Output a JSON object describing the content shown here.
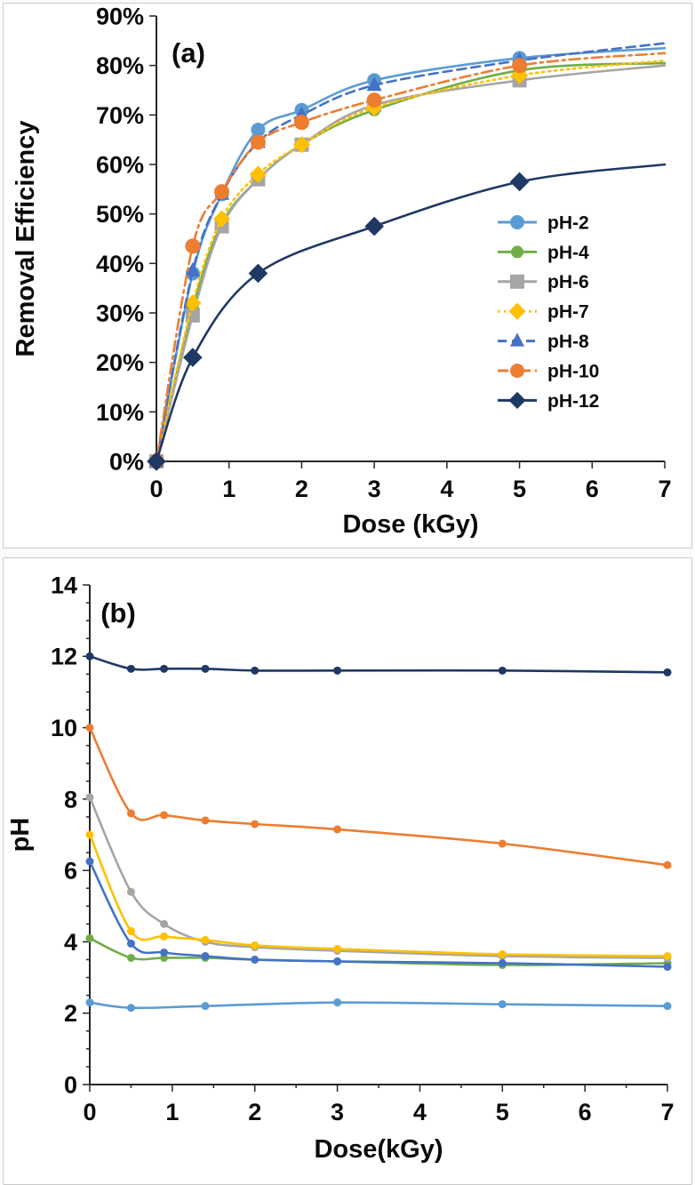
{
  "figure": {
    "panel_labels": [
      "(a)",
      "(b)"
    ]
  },
  "chart_data": [
    {
      "type": "line",
      "panel_label": "(a)",
      "xlabel": "Dose (kGy)",
      "ylabel": "Removal Efficiency",
      "xlim": [
        0,
        7
      ],
      "ylim": [
        0,
        90
      ],
      "xticks": [
        0,
        1,
        2,
        3,
        4,
        5,
        6,
        7
      ],
      "yticks": [
        0,
        10,
        20,
        30,
        40,
        50,
        60,
        70,
        80,
        90
      ],
      "ytick_suffix": "%",
      "grid": false,
      "legend": true,
      "legend_position": "inside-right-middle",
      "series": [
        {
          "name": "pH-2",
          "color": "#5B9BD5",
          "marker": "circle",
          "marker_size": 8,
          "line": "solid",
          "x": [
            0,
            0.5,
            0.9,
            1.4,
            2,
            3,
            5
          ],
          "y": [
            0,
            38,
            54,
            67,
            71,
            77,
            81.5
          ],
          "line_end": [
            7,
            83.5
          ]
        },
        {
          "name": "pH-4",
          "color": "#70AD47",
          "marker": "circle",
          "marker_size": 7,
          "line": "solid",
          "x": [
            0,
            0.5,
            0.9,
            1.4,
            2,
            3,
            5
          ],
          "y": [
            0,
            31,
            48,
            57,
            64,
            71,
            79
          ],
          "line_end": [
            7,
            80.5
          ]
        },
        {
          "name": "pH-6",
          "color": "#A5A5A5",
          "marker": "square",
          "marker_size": 8,
          "line": "solid",
          "x": [
            0,
            0.5,
            0.9,
            1.4,
            2,
            3,
            5
          ],
          "y": [
            0,
            29.5,
            47.5,
            57,
            64,
            72,
            77
          ],
          "line_end": [
            7,
            80
          ]
        },
        {
          "name": "pH-7",
          "color": "#FFC000",
          "marker": "diamond",
          "marker_size": 8,
          "line": "dotted",
          "x": [
            0,
            0.5,
            0.9,
            1.4,
            2,
            3,
            5
          ],
          "y": [
            0,
            32,
            49,
            58,
            64,
            71.5,
            78
          ],
          "line_end": [
            7,
            81
          ]
        },
        {
          "name": "pH-8",
          "color": "#4472C4",
          "marker": "triangle",
          "marker_size": 8.5,
          "line": "dashed",
          "x": [
            0,
            0.5,
            0.9,
            1.4,
            2,
            3,
            5
          ],
          "y": [
            0,
            38.5,
            54,
            64.5,
            70,
            76,
            81
          ],
          "line_end": [
            7,
            84.5
          ]
        },
        {
          "name": "pH-10",
          "color": "#ED7D31",
          "marker": "circle",
          "marker_size": 8.5,
          "line": "dashdot",
          "x": [
            0,
            0.5,
            0.9,
            1.4,
            2,
            3,
            5
          ],
          "y": [
            0,
            43.5,
            54.5,
            64.5,
            68.5,
            73,
            80
          ],
          "line_end": [
            7,
            82.5
          ]
        },
        {
          "name": "pH-12",
          "color": "#1F3864",
          "marker": "diamond",
          "marker_size": 9,
          "line": "solid",
          "x": [
            0,
            0.5,
            1.4,
            3,
            5
          ],
          "y": [
            0,
            21,
            38,
            47.5,
            56.5
          ],
          "line_end": [
            7,
            60
          ]
        }
      ]
    },
    {
      "type": "line",
      "panel_label": "(b)",
      "xlabel": "Dose(kGy)",
      "ylabel": "pH",
      "xlim": [
        0,
        7
      ],
      "ylim": [
        0,
        14
      ],
      "xticks": [
        0,
        1,
        2,
        3,
        4,
        5,
        6,
        7
      ],
      "yticks": [
        0,
        2,
        4,
        6,
        8,
        10,
        12,
        14
      ],
      "x_minor_step": 0.5,
      "y_minor_step": 0.5,
      "grid": false,
      "legend": false,
      "series": [
        {
          "name": "pH-2",
          "color": "#5B9BD5",
          "marker": "circle",
          "marker_size": 4.5,
          "line": "solid",
          "x": [
            0,
            0.5,
            1.4,
            3,
            5,
            7
          ],
          "y": [
            2.3,
            2.15,
            2.2,
            2.3,
            2.25,
            2.2
          ]
        },
        {
          "name": "pH-4",
          "color": "#70AD47",
          "marker": "circle",
          "marker_size": 4.5,
          "line": "solid",
          "x": [
            0,
            0.5,
            0.9,
            1.4,
            2,
            3,
            5,
            7
          ],
          "y": [
            4.1,
            3.55,
            3.55,
            3.55,
            3.5,
            3.45,
            3.35,
            3.4
          ]
        },
        {
          "name": "pH-6",
          "color": "#A5A5A5",
          "marker": "circle",
          "marker_size": 4.5,
          "line": "solid",
          "x": [
            0,
            0.5,
            0.9,
            1.4,
            2,
            3,
            5,
            7
          ],
          "y": [
            8.05,
            5.4,
            4.5,
            4.0,
            3.85,
            3.75,
            3.6,
            3.55
          ]
        },
        {
          "name": "pH-7",
          "color": "#FFC000",
          "marker": "circle",
          "marker_size": 4.5,
          "line": "solid",
          "x": [
            0,
            0.5,
            0.9,
            1.4,
            2,
            3,
            5,
            7
          ],
          "y": [
            7.0,
            4.3,
            4.15,
            4.05,
            3.9,
            3.8,
            3.65,
            3.6
          ]
        },
        {
          "name": "pH-8",
          "color": "#4472C4",
          "marker": "circle",
          "marker_size": 4.5,
          "line": "solid",
          "x": [
            0,
            0.5,
            0.9,
            1.4,
            2,
            3,
            5,
            7
          ],
          "y": [
            6.25,
            3.95,
            3.7,
            3.6,
            3.5,
            3.45,
            3.4,
            3.3
          ]
        },
        {
          "name": "pH-10",
          "color": "#ED7D31",
          "marker": "circle",
          "marker_size": 4.5,
          "line": "solid",
          "x": [
            0,
            0.5,
            0.9,
            1.4,
            2,
            3,
            5,
            7
          ],
          "y": [
            10.0,
            7.6,
            7.55,
            7.4,
            7.3,
            7.15,
            6.75,
            6.15
          ]
        },
        {
          "name": "pH-12",
          "color": "#1F3864",
          "marker": "circle",
          "marker_size": 4.5,
          "line": "solid",
          "x": [
            0,
            0.5,
            0.9,
            1.4,
            2,
            3,
            5,
            7
          ],
          "y": [
            12.0,
            11.65,
            11.65,
            11.65,
            11.6,
            11.6,
            11.6,
            11.55
          ]
        }
      ]
    }
  ]
}
